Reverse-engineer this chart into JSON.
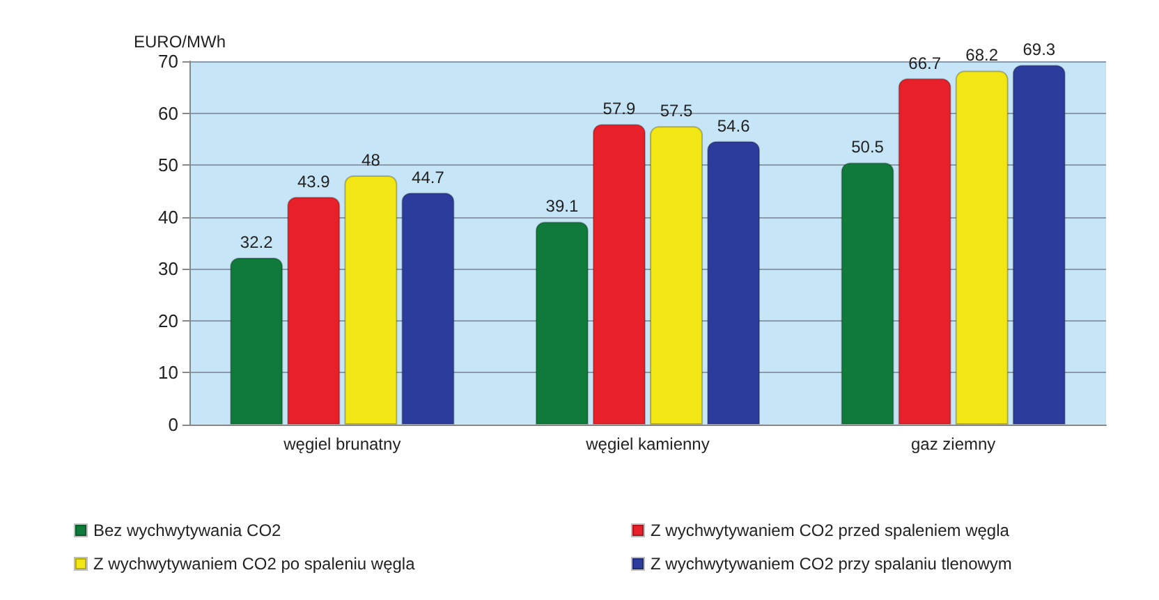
{
  "chart_data": {
    "type": "bar",
    "ylabel": "EURO/MWh",
    "categories": [
      "węgiel brunatny",
      "węgiel kamienny",
      "gaz ziemny"
    ],
    "series": [
      {
        "name": "Bez wychwytywania CO2",
        "color": "#107a3a",
        "values": [
          32.2,
          39.1,
          50.5
        ]
      },
      {
        "name": "Z wychwytywaniem CO2 przed spaleniem węgla",
        "color": "#e8202a",
        "values": [
          43.9,
          57.9,
          66.7
        ]
      },
      {
        "name": "Z wychwytywaniem CO2 po spaleniu węgla",
        "color": "#f2e614",
        "values": [
          48,
          57.5,
          68.2
        ]
      },
      {
        "name": "Z wychwytywaniem CO2 przy spalaniu tlenowym",
        "color": "#2b3c9c",
        "values": [
          44.7,
          54.6,
          69.3
        ]
      }
    ],
    "ylim": [
      0,
      70
    ],
    "yticks": [
      0,
      10,
      20,
      30,
      40,
      50,
      60,
      70
    ],
    "grid": "y",
    "legend": "bottom",
    "data_labels": true
  }
}
